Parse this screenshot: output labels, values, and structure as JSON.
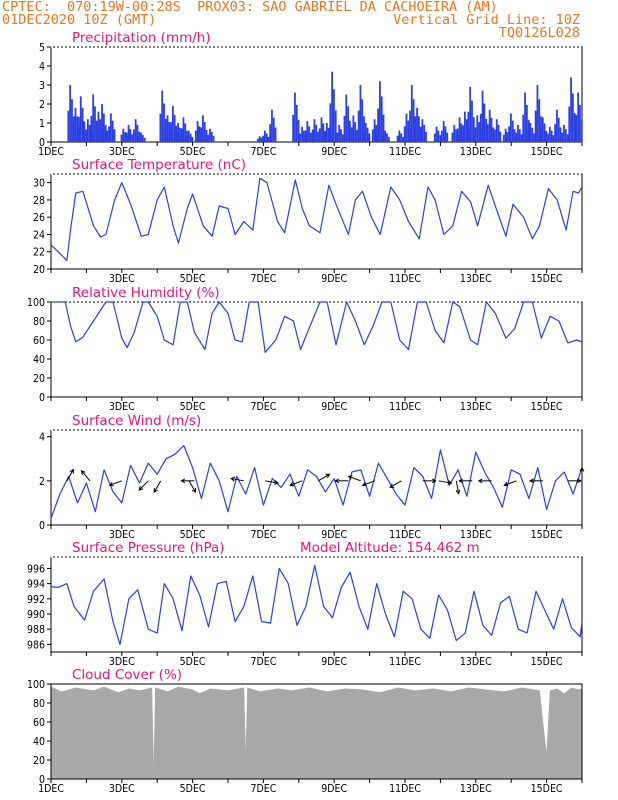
{
  "header": {
    "line1_left": "CPTEC:  070:19W-00:28S  PROX03: SAO GABRIEL DA CACHOEIRA (AM)",
    "line2_left": "01DEC2020 10Z (GMT)",
    "line2_right": "Vertical Grid Line: 10Z",
    "line3_right": "TQ0126L028"
  },
  "chart_data": [
    {
      "type": "bar",
      "title": "Precipitation (mm/h)",
      "xlabel": "",
      "ylabel": "",
      "ylim": [
        0,
        5
      ],
      "yticks": [
        "0",
        "1",
        "2",
        "3",
        "4",
        "5"
      ],
      "xticks": [
        "1DEC",
        "3DEC",
        "5DEC",
        "7DEC",
        "9DEC",
        "11DEC",
        "13DEC",
        "15DEC"
      ],
      "xlim_days": [
        1,
        16
      ],
      "grid": false,
      "x_day": [
        1.55,
        1.7,
        1.85,
        2.05,
        2.2,
        2.35,
        2.45,
        2.55,
        2.7,
        3.05,
        3.2,
        3.4,
        3.55,
        4.15,
        4.3,
        4.45,
        4.6,
        4.75,
        4.9,
        5.15,
        5.3,
        5.5,
        6.9,
        7.05,
        7.25,
        7.9,
        8.1,
        8.25,
        8.45,
        8.65,
        8.8,
        8.95,
        9.15,
        9.35,
        9.55,
        9.75,
        9.9,
        10.15,
        10.3,
        10.45,
        10.85,
        11.05,
        11.2,
        11.35,
        11.5,
        11.9,
        12.1,
        12.4,
        12.55,
        12.7,
        12.85,
        13.05,
        13.2,
        13.4,
        13.6,
        13.85,
        14.0,
        14.2,
        14.4,
        14.55,
        14.75,
        14.9,
        15.1,
        15.3,
        15.5,
        15.7,
        15.9
      ],
      "values": [
        3.0,
        1.8,
        2.4,
        1.2,
        2.5,
        1.6,
        2.0,
        0.8,
        1.5,
        0.7,
        0.9,
        1.2,
        0.5,
        2.7,
        1.4,
        1.9,
        1.0,
        1.3,
        0.6,
        1.1,
        1.4,
        0.7,
        0.3,
        0.6,
        1.7,
        2.6,
        0.8,
        1.1,
        1.2,
        1.3,
        1.0,
        3.7,
        0.9,
        2.5,
        1.4,
        3.0,
        1.0,
        1.2,
        3.2,
        0.6,
        0.6,
        1.5,
        3.0,
        1.8,
        1.2,
        0.8,
        1.1,
        0.9,
        1.3,
        1.6,
        2.9,
        1.4,
        2.7,
        1.7,
        1.2,
        0.7,
        1.5,
        0.9,
        2.6,
        1.0,
        3.0,
        1.3,
        0.8,
        1.7,
        0.9,
        3.4,
        2.6
      ]
    },
    {
      "type": "line",
      "title": "Surface Temperature (nC)",
      "ylim": [
        20,
        31
      ],
      "yticks": [
        "20",
        "22",
        "24",
        "26",
        "28",
        "30"
      ],
      "xticks": [
        "3DEC",
        "5DEC",
        "7DEC",
        "9DEC",
        "11DEC",
        "13DEC",
        "15DEC"
      ],
      "grid": false,
      "x_day": [
        1.0,
        1.2,
        1.45,
        1.55,
        1.7,
        1.9,
        2.2,
        2.4,
        2.55,
        2.8,
        3.0,
        3.25,
        3.55,
        3.75,
        4.0,
        4.2,
        4.45,
        4.6,
        4.85,
        5.0,
        5.3,
        5.55,
        5.75,
        6.0,
        6.2,
        6.45,
        6.7,
        6.9,
        7.1,
        7.4,
        7.6,
        7.9,
        8.1,
        8.3,
        8.6,
        8.85,
        9.05,
        9.4,
        9.6,
        9.8,
        10.05,
        10.3,
        10.6,
        10.85,
        11.1,
        11.4,
        11.65,
        11.85,
        12.1,
        12.35,
        12.6,
        12.85,
        13.05,
        13.35,
        13.55,
        13.85,
        14.05,
        14.35,
        14.6,
        14.8,
        15.05,
        15.3,
        15.55,
        15.75,
        15.9,
        16.0
      ],
      "values": [
        22.8,
        22.0,
        21.0,
        24.5,
        28.8,
        29.0,
        25.0,
        23.7,
        24.0,
        28.0,
        30.0,
        27.5,
        23.8,
        24.0,
        28.0,
        29.5,
        25.0,
        23.0,
        27.0,
        28.7,
        25.0,
        23.8,
        27.3,
        27.0,
        24.0,
        25.5,
        24.5,
        30.5,
        30.0,
        25.5,
        24.2,
        30.3,
        27.0,
        25.0,
        24.2,
        29.7,
        27.5,
        24.0,
        28.0,
        29.0,
        26.0,
        24.0,
        29.5,
        28.0,
        25.5,
        23.5,
        29.5,
        28.0,
        24.0,
        25.0,
        29.0,
        27.8,
        25.0,
        29.7,
        27.3,
        23.8,
        27.5,
        26.0,
        23.5,
        25.0,
        29.3,
        28.0,
        24.5,
        29.0,
        28.8,
        29.5
      ]
    },
    {
      "type": "line",
      "title": "Relative Humidity (%)",
      "ylim": [
        0,
        100
      ],
      "yticks": [
        "0",
        "20",
        "40",
        "60",
        "80",
        "100"
      ],
      "xticks": [
        "3DEC",
        "5DEC",
        "7DEC",
        "9DEC",
        "11DEC",
        "13DEC",
        "15DEC"
      ],
      "grid": false,
      "x_day": [
        1.0,
        1.4,
        1.55,
        1.7,
        1.9,
        2.2,
        2.55,
        2.75,
        3.0,
        3.15,
        3.35,
        3.6,
        3.75,
        4.0,
        4.2,
        4.45,
        4.65,
        4.85,
        5.05,
        5.35,
        5.55,
        5.75,
        6.0,
        6.2,
        6.4,
        6.6,
        6.85,
        7.05,
        7.35,
        7.6,
        7.85,
        8.05,
        8.3,
        8.6,
        8.8,
        9.05,
        9.35,
        9.6,
        9.85,
        10.1,
        10.35,
        10.6,
        10.85,
        11.1,
        11.35,
        11.6,
        11.85,
        12.1,
        12.35,
        12.55,
        12.85,
        13.05,
        13.3,
        13.55,
        13.85,
        14.1,
        14.35,
        14.6,
        14.85,
        15.1,
        15.35,
        15.6,
        15.85,
        16.0
      ],
      "values": [
        100,
        100,
        75,
        58,
        63,
        80,
        100,
        100,
        62,
        52,
        68,
        100,
        100,
        85,
        60,
        55,
        100,
        100,
        68,
        50,
        88,
        100,
        88,
        60,
        58,
        100,
        100,
        47,
        60,
        85,
        80,
        50,
        73,
        100,
        100,
        55,
        100,
        80,
        55,
        75,
        100,
        100,
        60,
        50,
        100,
        100,
        70,
        57,
        100,
        95,
        60,
        55,
        100,
        88,
        62,
        72,
        100,
        100,
        62,
        85,
        80,
        57,
        60,
        58
      ]
    },
    {
      "type": "line",
      "title": "Surface Wind (m/s)",
      "ylim": [
        0,
        4.3
      ],
      "yticks": [
        "0",
        "2",
        "4"
      ],
      "xticks": [
        "3DEC",
        "5DEC",
        "7DEC",
        "9DEC",
        "11DEC",
        "13DEC",
        "15DEC"
      ],
      "grid": false,
      "x_day": [
        1.0,
        1.25,
        1.5,
        1.75,
        2.0,
        2.25,
        2.5,
        2.75,
        3.0,
        3.25,
        3.5,
        3.75,
        4.0,
        4.25,
        4.5,
        4.75,
        5.0,
        5.25,
        5.5,
        5.75,
        6.0,
        6.25,
        6.5,
        6.75,
        7.0,
        7.25,
        7.5,
        7.75,
        8.0,
        8.25,
        8.5,
        8.75,
        9.0,
        9.25,
        9.5,
        9.75,
        10.0,
        10.25,
        10.5,
        10.75,
        11.0,
        11.25,
        11.5,
        11.75,
        12.0,
        12.25,
        12.5,
        12.75,
        13.0,
        13.25,
        13.5,
        13.75,
        14.0,
        14.25,
        14.5,
        14.75,
        15.0,
        15.25,
        15.5,
        15.75,
        16.0
      ],
      "values": [
        0.3,
        1.4,
        2.2,
        1.0,
        1.9,
        0.6,
        2.5,
        1.5,
        1.0,
        2.7,
        1.9,
        2.8,
        2.3,
        3.0,
        3.2,
        3.6,
        2.6,
        1.2,
        2.8,
        2.0,
        0.6,
        2.2,
        1.4,
        2.6,
        0.9,
        2.1,
        1.7,
        2.3,
        1.3,
        2.5,
        2.2,
        1.5,
        2.1,
        0.9,
        2.4,
        2.5,
        1.3,
        2.8,
        2.1,
        1.4,
        0.9,
        2.6,
        2.2,
        1.2,
        3.4,
        1.8,
        2.5,
        1.3,
        3.3,
        2.4,
        1.7,
        0.8,
        2.5,
        2.3,
        1.2,
        2.6,
        0.7,
        2.0,
        2.4,
        1.4,
        2.6
      ],
      "arrows_day": [
        1.45,
        2.1,
        3.0,
        3.75,
        4.1,
        4.9,
        5.05,
        6.45,
        7.05,
        8.1,
        8.55,
        9.4,
        9.75,
        10.15,
        10.9,
        11.5,
        11.95,
        12.45,
        12.9,
        13.45,
        14.15,
        14.9,
        15.6,
        16.0
      ],
      "arrows_dir_deg": [
        60,
        130,
        200,
        225,
        240,
        300,
        180,
        170,
        350,
        200,
        30,
        180,
        160,
        200,
        210,
        0,
        350,
        280,
        180,
        180,
        200,
        180,
        0,
        90
      ]
    },
    {
      "type": "line",
      "title": "Surface Pressure (hPa)",
      "annotation": "Model Altitude: 154.462 m",
      "ylim": [
        985,
        997.5
      ],
      "yticks": [
        "986",
        "988",
        "990",
        "992",
        "994",
        "996"
      ],
      "xticks": [
        "3DEC",
        "5DEC",
        "7DEC",
        "9DEC",
        "11DEC",
        "13DEC",
        "15DEC"
      ],
      "grid": false,
      "x_day": [
        1.0,
        1.2,
        1.45,
        1.65,
        1.95,
        2.2,
        2.5,
        2.75,
        2.95,
        3.2,
        3.45,
        3.75,
        4.0,
        4.2,
        4.45,
        4.7,
        4.95,
        5.2,
        5.45,
        5.7,
        5.95,
        6.2,
        6.45,
        6.7,
        6.95,
        7.2,
        7.45,
        7.7,
        7.95,
        8.2,
        8.45,
        8.7,
        8.95,
        9.2,
        9.45,
        9.7,
        9.95,
        10.2,
        10.45,
        10.7,
        10.95,
        11.2,
        11.45,
        11.7,
        11.95,
        12.2,
        12.45,
        12.7,
        12.95,
        13.2,
        13.45,
        13.7,
        13.95,
        14.2,
        14.45,
        14.7,
        14.95,
        15.2,
        15.45,
        15.7,
        15.95,
        16.0
      ],
      "values": [
        993.6,
        993.5,
        994.0,
        991.0,
        989.2,
        993.0,
        994.6,
        989.0,
        986.0,
        992.0,
        993.2,
        988.0,
        987.5,
        994.0,
        992.0,
        987.8,
        995.0,
        992.5,
        988.3,
        994.0,
        994.3,
        989.0,
        991.0,
        995.0,
        989.0,
        988.8,
        996.0,
        994.0,
        988.5,
        991.0,
        996.4,
        991.0,
        989.5,
        993.5,
        995.5,
        991.0,
        988.0,
        994.0,
        990.0,
        987.0,
        993.0,
        992.0,
        988.0,
        986.8,
        992.5,
        990.5,
        986.5,
        987.5,
        993.0,
        988.5,
        987.2,
        991.5,
        992.3,
        988.0,
        987.5,
        993.0,
        990.5,
        988.0,
        992.0,
        988.2,
        987.0,
        989.0
      ]
    },
    {
      "type": "area",
      "title": "Cloud Cover (%)",
      "ylim": [
        0,
        100
      ],
      "yticks": [
        "0",
        "20",
        "40",
        "60",
        "80",
        "100"
      ],
      "xticks": [
        "1DEC",
        "3DEC",
        "5DEC",
        "7DEC",
        "9DEC",
        "11DEC",
        "13DEC",
        "15DEC"
      ],
      "grid": false,
      "x_day": [
        1.0,
        1.3,
        1.7,
        2.2,
        2.5,
        2.9,
        3.2,
        3.5,
        3.85,
        3.9,
        3.95,
        4.3,
        4.6,
        5.0,
        5.2,
        5.5,
        6.0,
        6.45,
        6.5,
        6.55,
        6.9,
        7.4,
        7.8,
        8.3,
        8.8,
        9.3,
        9.8,
        10.3,
        10.8,
        11.3,
        11.8,
        12.3,
        12.8,
        13.3,
        13.8,
        14.3,
        14.8,
        15.0,
        15.1,
        15.3,
        15.5,
        15.7,
        15.9,
        16.0
      ],
      "values": [
        97,
        92,
        96,
        93,
        97,
        91,
        95,
        93,
        96,
        5,
        96,
        92,
        97,
        94,
        90,
        95,
        93,
        96,
        20,
        96,
        92,
        95,
        93,
        96,
        92,
        95,
        94,
        91,
        96,
        93,
        95,
        92,
        96,
        94,
        92,
        96,
        93,
        25,
        93,
        95,
        90,
        96,
        94,
        95
      ]
    }
  ]
}
